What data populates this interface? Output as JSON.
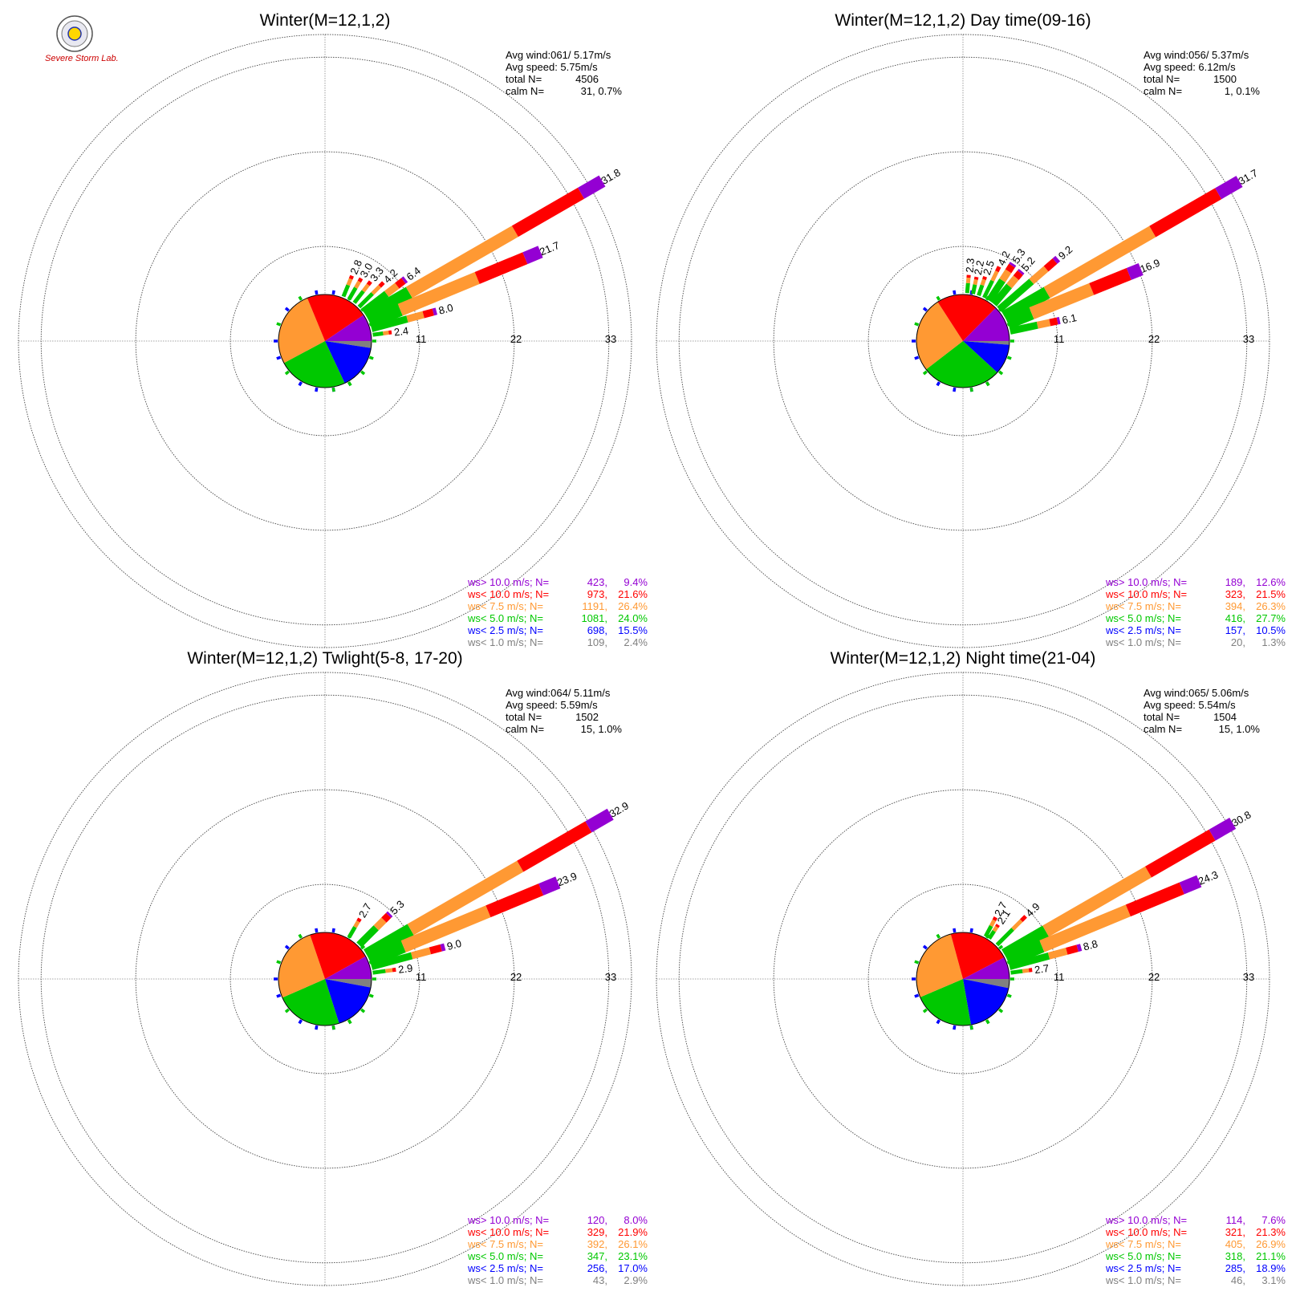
{
  "logo": {
    "text": "Severe Storm Lab."
  },
  "chart_data": [
    {
      "type": "wind_rose",
      "title": "Winter(M=12,1,2)",
      "radial_ticks": [
        11,
        22,
        33
      ],
      "stats": {
        "avg_wind_label": "Avg wind:061/ 5.17m/s",
        "avg_speed_label": "Avg speed: 5.75m/s",
        "total_label": "total N=",
        "total_value": "4506",
        "calm_label": "calm N=",
        "calm_value": "31,   0.7%"
      },
      "pie": [
        2.4,
        15.5,
        24.0,
        26.4,
        21.6,
        9.4
      ],
      "spokes": [
        {
          "dir": 22.5,
          "value": 2.8,
          "label": "2.8"
        },
        {
          "dir": 30,
          "value": 3.0,
          "label": "3.0"
        },
        {
          "dir": 37.5,
          "value": 3.3,
          "label": "3.3"
        },
        {
          "dir": 45,
          "value": 4.2,
          "label": "4.2"
        },
        {
          "dir": 52.5,
          "value": 6.4,
          "label": "6.4"
        },
        {
          "dir": 60,
          "value": 31.8,
          "label": "31.8"
        },
        {
          "dir": 67.5,
          "value": 21.7,
          "label": "21.7"
        },
        {
          "dir": 75,
          "value": 8.0,
          "label": "8.0"
        },
        {
          "dir": 82.5,
          "value": 2.4,
          "label": "2.4"
        }
      ],
      "legend": [
        {
          "label": "ws> 10.0 m/s; N=",
          "count": "423",
          "pct": "9.4%",
          "color": "#9400d3"
        },
        {
          "label": "ws< 10.0 m/s; N=",
          "count": "973",
          "pct": "21.6%",
          "color": "#ff0000"
        },
        {
          "label": "ws<  7.5 m/s; N=",
          "count": "1191",
          "pct": "26.4%",
          "color": "#ff9933"
        },
        {
          "label": "ws<  5.0 m/s; N=",
          "count": "1081",
          "pct": "24.0%",
          "color": "#00c800"
        },
        {
          "label": "ws<  2.5 m/s; N=",
          "count": "698",
          "pct": "15.5%",
          "color": "#0000ff"
        },
        {
          "label": "ws<  1.0 m/s; N=",
          "count": "109",
          "pct": "2.4%",
          "color": "#808080"
        }
      ]
    },
    {
      "type": "wind_rose",
      "title": "Winter(M=12,1,2) Day time(09-16)",
      "radial_ticks": [
        11,
        22,
        33
      ],
      "stats": {
        "avg_wind_label": "Avg wind:056/ 5.37m/s",
        "avg_speed_label": "Avg speed: 6.12m/s",
        "total_label": "total N=",
        "total_value": "1500",
        "calm_label": "calm N=",
        "calm_value": "1,   0.1%"
      },
      "pie": [
        1.3,
        10.5,
        27.7,
        26.3,
        21.5,
        12.6
      ],
      "spokes": [
        {
          "dir": 5,
          "value": 2.3,
          "label": "2.3"
        },
        {
          "dir": 12,
          "value": 2.2,
          "label": "2.2"
        },
        {
          "dir": 19,
          "value": 2.5,
          "label": "2.5"
        },
        {
          "dir": 26,
          "value": 4.2,
          "label": "4.2"
        },
        {
          "dir": 33,
          "value": 5.3,
          "label": "5.3"
        },
        {
          "dir": 40,
          "value": 5.2,
          "label": "5.2"
        },
        {
          "dir": 49,
          "value": 9.2,
          "label": "9.2"
        },
        {
          "dir": 60,
          "value": 31.7,
          "label": "31.7"
        },
        {
          "dir": 68,
          "value": 16.9,
          "label": "16.9"
        },
        {
          "dir": 78,
          "value": 6.1,
          "label": "6.1"
        }
      ],
      "legend": [
        {
          "label": "ws> 10.0 m/s; N=",
          "count": "189",
          "pct": "12.6%",
          "color": "#9400d3"
        },
        {
          "label": "ws< 10.0 m/s; N=",
          "count": "323",
          "pct": "21.5%",
          "color": "#ff0000"
        },
        {
          "label": "ws<  7.5 m/s; N=",
          "count": "394",
          "pct": "26.3%",
          "color": "#ff9933"
        },
        {
          "label": "ws<  5.0 m/s; N=",
          "count": "416",
          "pct": "27.7%",
          "color": "#00c800"
        },
        {
          "label": "ws<  2.5 m/s; N=",
          "count": "157",
          "pct": "10.5%",
          "color": "#0000ff"
        },
        {
          "label": "ws<  1.0 m/s; N=",
          "count": "20",
          "pct": "1.3%",
          "color": "#808080"
        }
      ]
    },
    {
      "type": "wind_rose",
      "title": "Winter(M=12,1,2) Twlight(5-8, 17-20)",
      "radial_ticks": [
        11,
        22,
        33
      ],
      "stats": {
        "avg_wind_label": "Avg wind:064/ 5.11m/s",
        "avg_speed_label": "Avg speed: 5.59m/s",
        "total_label": "total N=",
        "total_value": "1502",
        "calm_label": "calm N=",
        "calm_value": "15,   1.0%"
      },
      "pie": [
        2.9,
        17.0,
        23.1,
        26.1,
        21.9,
        8.0
      ],
      "spokes": [
        {
          "dir": 30,
          "value": 2.7,
          "label": "2.7"
        },
        {
          "dir": 45,
          "value": 5.3,
          "label": "5.3"
        },
        {
          "dir": 60,
          "value": 32.9,
          "label": "32.9"
        },
        {
          "dir": 67.5,
          "value": 23.9,
          "label": "23.9"
        },
        {
          "dir": 75,
          "value": 9.0,
          "label": "9.0"
        },
        {
          "dir": 82.5,
          "value": 2.9,
          "label": "2.9"
        }
      ],
      "legend": [
        {
          "label": "ws> 10.0 m/s; N=",
          "count": "120",
          "pct": "8.0%",
          "color": "#9400d3"
        },
        {
          "label": "ws< 10.0 m/s; N=",
          "count": "329",
          "pct": "21.9%",
          "color": "#ff0000"
        },
        {
          "label": "ws<  7.5 m/s; N=",
          "count": "392",
          "pct": "26.1%",
          "color": "#ff9933"
        },
        {
          "label": "ws<  5.0 m/s; N=",
          "count": "347",
          "pct": "23.1%",
          "color": "#00c800"
        },
        {
          "label": "ws<  2.5 m/s; N=",
          "count": "256",
          "pct": "17.0%",
          "color": "#0000ff"
        },
        {
          "label": "ws<  1.0 m/s; N=",
          "count": "43",
          "pct": "2.9%",
          "color": "#808080"
        }
      ]
    },
    {
      "type": "wind_rose",
      "title": "Winter(M=12,1,2) Night time(21-04)",
      "radial_ticks": [
        11,
        22,
        33
      ],
      "stats": {
        "avg_wind_label": "Avg wind:065/ 5.06m/s",
        "avg_speed_label": "Avg speed: 5.54m/s",
        "total_label": "total N=",
        "total_value": "1504",
        "calm_label": "calm N=",
        "calm_value": "15,   1.0%"
      },
      "pie": [
        3.1,
        18.9,
        21.1,
        26.9,
        21.3,
        7.6
      ],
      "spokes": [
        {
          "dir": 28,
          "value": 2.7,
          "label": "2.7"
        },
        {
          "dir": 33,
          "value": 2.1,
          "label": "2.1"
        },
        {
          "dir": 45,
          "value": 4.9,
          "label": "4.9"
        },
        {
          "dir": 60,
          "value": 30.8,
          "label": "30.8"
        },
        {
          "dir": 67.5,
          "value": 24.3,
          "label": "24.3"
        },
        {
          "dir": 75,
          "value": 8.8,
          "label": "8.8"
        },
        {
          "dir": 82.5,
          "value": 2.7,
          "label": "2.7"
        }
      ],
      "legend": [
        {
          "label": "ws> 10.0 m/s; N=",
          "count": "114",
          "pct": "7.6%",
          "color": "#9400d3"
        },
        {
          "label": "ws< 10.0 m/s; N=",
          "count": "321",
          "pct": "21.3%",
          "color": "#ff0000"
        },
        {
          "label": "ws<  7.5 m/s; N=",
          "count": "405",
          "pct": "26.9%",
          "color": "#ff9933"
        },
        {
          "label": "ws<  5.0 m/s; N=",
          "count": "318",
          "pct": "21.1%",
          "color": "#00c800"
        },
        {
          "label": "ws<  2.5 m/s; N=",
          "count": "285",
          "pct": "18.9%",
          "color": "#0000ff"
        },
        {
          "label": "ws<  1.0 m/s; N=",
          "count": "46",
          "pct": "3.1%",
          "color": "#808080"
        }
      ]
    }
  ]
}
